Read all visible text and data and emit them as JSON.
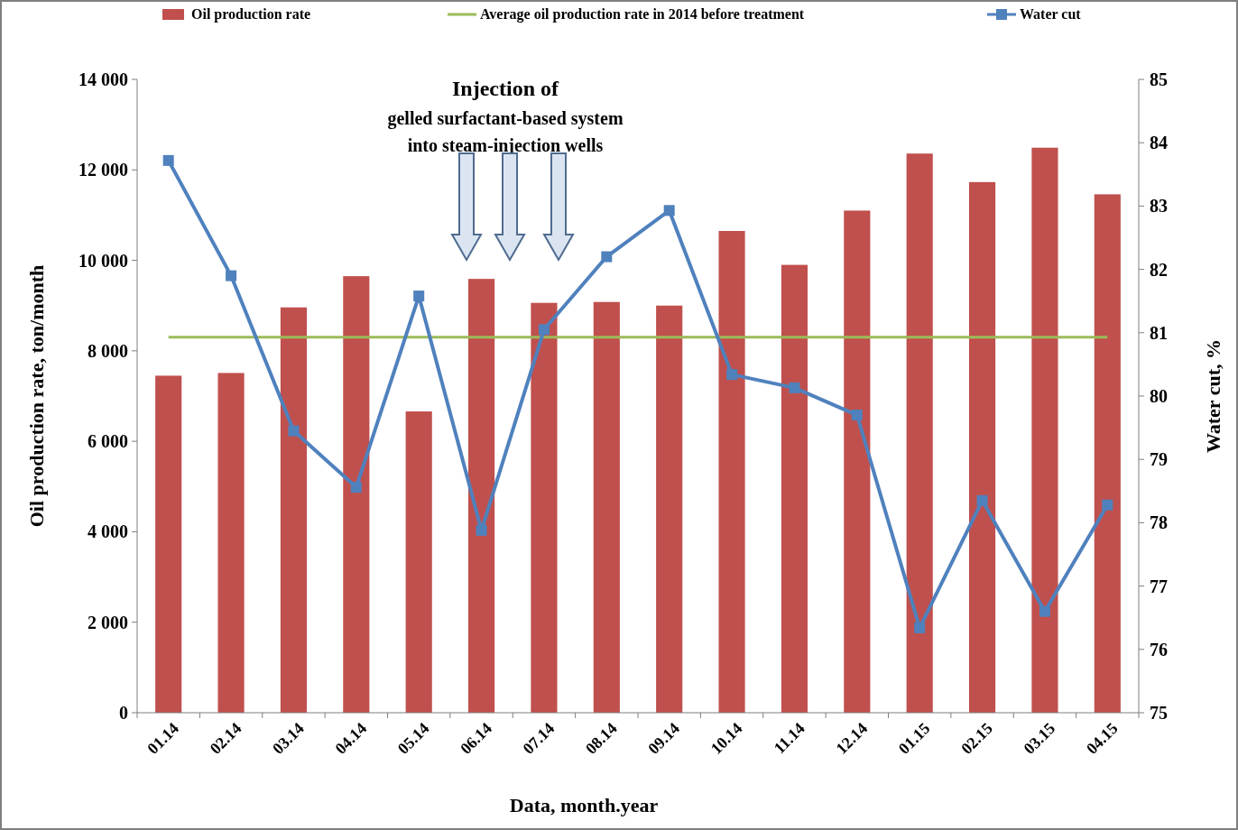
{
  "chart_data": {
    "type": "bar",
    "xlabel": "Data,  month.year",
    "ylabel": "Oil production rate, ton/month",
    "y2label": "Water cut, %",
    "categories": [
      "01.14",
      "02.14",
      "03.14",
      "04.14",
      "05.14",
      "06.14",
      "07.14",
      "08.14",
      "09.14",
      "10.14",
      "11.14",
      "12.14",
      "01.15",
      "02.15",
      "03.15",
      "04.15"
    ],
    "series": [
      {
        "name": "Oil production rate",
        "color": "#c0504d",
        "values": [
          7450,
          7510,
          8960,
          9650,
          6660,
          9590,
          9060,
          9080,
          9000,
          10650,
          9900,
          11100,
          12360,
          11730,
          12490,
          11460
        ]
      },
      {
        "name": "Water cut",
        "type": "line",
        "axis": "y2",
        "color": "#4f81bd",
        "marker": "square",
        "values": [
          83.72,
          81.9,
          79.45,
          78.56,
          81.58,
          77.88,
          81.05,
          82.2,
          82.93,
          80.34,
          80.13,
          79.7,
          76.34,
          78.35,
          76.6,
          78.28
        ]
      }
    ],
    "ref_lines": [
      {
        "axis": "y",
        "value": 8300,
        "label": "Average oil production rate in 2014 before treatment",
        "color": "#9bbb59"
      }
    ],
    "annotations": [
      "Injection of",
      "gelled surfactant-based system",
      "into steam-injection wells"
    ],
    "ylim": [
      0,
      14000
    ],
    "yticks": [
      {
        "value": 0,
        "label": "0"
      },
      {
        "value": 2000,
        "label": "2 000"
      },
      {
        "value": 4000,
        "label": "4 000"
      },
      {
        "value": 6000,
        "label": "6 000"
      },
      {
        "value": 8000,
        "label": "8 000"
      },
      {
        "value": 10000,
        "label": "10 000"
      },
      {
        "value": 12000,
        "label": "12 000"
      },
      {
        "value": 14000,
        "label": "14 000"
      }
    ],
    "y2lim": [
      75,
      85
    ],
    "y2ticks": [
      75,
      76,
      77,
      78,
      79,
      80,
      81,
      82,
      83,
      84,
      85
    ],
    "legend": "top",
    "grid": false
  }
}
